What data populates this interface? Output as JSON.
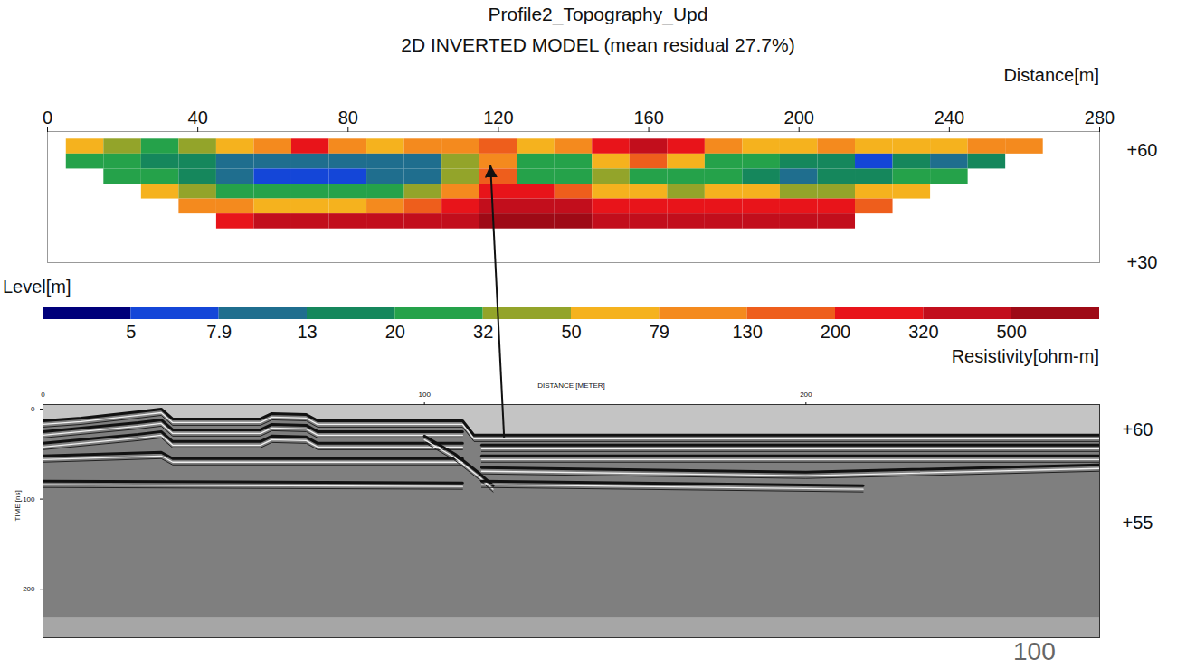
{
  "chart_data": [
    {
      "type": "heatmap",
      "title": "Profile2_Topography_Upd",
      "subtitle": "2D INVERTED MODEL (mean residual 27.7%)",
      "x_label": "Distance[m]",
      "y_label": "Level[m]",
      "xlim": [
        0,
        280
      ],
      "xticks": [
        0,
        40,
        80,
        120,
        160,
        200,
        240,
        280
      ],
      "ylim": [
        30,
        65
      ],
      "yticks": [
        {
          "value": 60,
          "label": "+60"
        },
        {
          "value": 30,
          "label": "+30"
        }
      ],
      "x_bins": [
        5,
        15,
        25,
        35,
        45,
        55,
        65,
        75,
        85,
        95,
        105,
        115,
        125,
        135,
        145,
        155,
        165,
        175,
        185,
        195,
        205,
        215,
        225,
        235,
        245,
        255,
        265
      ],
      "level_bins": [
        63,
        59,
        55,
        51,
        47,
        43,
        39
      ],
      "cells": [
        [
          60,
          40,
          30,
          35,
          60,
          90,
          250,
          90,
          60,
          80,
          100,
          150,
          60,
          100,
          200,
          400,
          300,
          100,
          60,
          70,
          80,
          60,
          60,
          70,
          80,
          90
        ],
        [
          25,
          20,
          18,
          15,
          10,
          9,
          8,
          10,
          12,
          8,
          40,
          120,
          20,
          25,
          50,
          150,
          60,
          25,
          20,
          18,
          15,
          7,
          15,
          9,
          15,
          null
        ],
        [
          null,
          30,
          20,
          13,
          10,
          7,
          6,
          6,
          9,
          10,
          45,
          150,
          25,
          20,
          45,
          25,
          30,
          20,
          15,
          12,
          13,
          18,
          20,
          25,
          null,
          null
        ],
        [
          null,
          null,
          50,
          35,
          30,
          25,
          25,
          28,
          30,
          40,
          120,
          300,
          200,
          130,
          60,
          50,
          45,
          50,
          50,
          40,
          45,
          50,
          60,
          null,
          null,
          null
        ],
        [
          null,
          null,
          null,
          100,
          80,
          70,
          70,
          70,
          80,
          150,
          300,
          400,
          450,
          400,
          250,
          200,
          200,
          200,
          200,
          220,
          200,
          150,
          null,
          null,
          null,
          null
        ],
        [
          null,
          null,
          null,
          null,
          300,
          350,
          350,
          350,
          350,
          400,
          450,
          500,
          550,
          550,
          450,
          350,
          350,
          350,
          350,
          350,
          350,
          null,
          null,
          null,
          null,
          null
        ]
      ],
      "colorbar": {
        "label": "Resistivity[ohm-m]",
        "ticks": [
          5,
          7.9,
          13,
          20,
          32,
          50,
          79,
          130,
          200,
          320,
          500
        ],
        "colors": [
          "#00007a",
          "#1446d8",
          "#1f6e8e",
          "#15875c",
          "#25a24a",
          "#93a42a",
          "#f5b21e",
          "#f48a1e",
          "#ee5e1c",
          "#e8141a",
          "#c20e1c",
          "#9e0a16"
        ]
      }
    },
    {
      "type": "line",
      "x_label": "DISTANCE [METER]",
      "y_label": "TIME [ns]",
      "xlim": [
        0,
        277
      ],
      "xticks": [
        0,
        100,
        200
      ],
      "ylim": [
        -5,
        254
      ],
      "yticks": [
        0,
        100,
        200
      ],
      "recorded_time_max": 232,
      "reflectors": [
        {
          "x": [
            0,
            10,
            25,
            31,
            34,
            57,
            60,
            69,
            72,
            110,
            113,
            277
          ],
          "time": [
            13,
            10,
            3,
            0,
            11,
            11,
            5,
            6,
            13,
            13,
            29,
            29
          ]
        },
        {
          "x": [
            0,
            25,
            31,
            34,
            57,
            60,
            69,
            72,
            110
          ],
          "time": [
            25,
            15,
            12,
            23,
            23,
            17,
            18,
            25,
            25
          ]
        },
        {
          "x": [
            0,
            25,
            31,
            34,
            57,
            60,
            69,
            72,
            110
          ],
          "time": [
            38,
            28,
            25,
            36,
            36,
            30,
            31,
            38,
            38
          ]
        },
        {
          "x": [
            0,
            31,
            34,
            110
          ],
          "time": [
            52,
            48,
            55,
            55
          ]
        },
        {
          "x": [
            0,
            110
          ],
          "time": [
            80,
            82
          ]
        },
        {
          "x": [
            100,
            108,
            114,
            118
          ],
          "time": [
            30,
            50,
            70,
            85
          ]
        },
        {
          "x": [
            115,
            277
          ],
          "time": [
            40,
            40
          ]
        },
        {
          "x": [
            115,
            277
          ],
          "time": [
            52,
            52
          ]
        },
        {
          "x": [
            115,
            200,
            277
          ],
          "time": [
            65,
            70,
            62
          ]
        },
        {
          "x": [
            115,
            215
          ],
          "time": [
            80,
            85
          ]
        }
      ],
      "elevation_labels": [
        {
          "time": 23,
          "label": "+60"
        },
        {
          "time": 127,
          "label": "+55"
        }
      ],
      "arrow": {
        "from": {
          "x": 121,
          "time": 32
        },
        "to": {
          "x": 118,
          "level": 56
        }
      },
      "annotation": "100"
    }
  ]
}
